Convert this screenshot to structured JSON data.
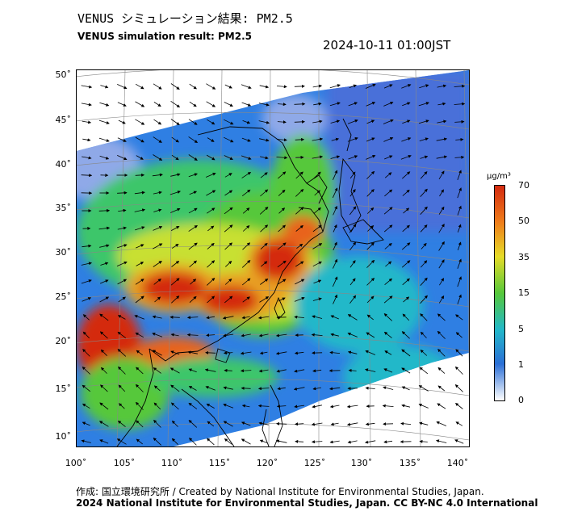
{
  "header": {
    "title_jp": "VENUS シミュレーション結果: PM2.5",
    "title_en": "VENUS simulation result: PM2.5",
    "timestamp": "2024-10-11 01:00JST"
  },
  "map": {
    "lat_ticks": [
      "50˚",
      "45˚",
      "40˚",
      "35˚",
      "30˚",
      "25˚",
      "20˚",
      "15˚",
      "10˚"
    ],
    "lon_ticks": [
      "100˚",
      "105˚",
      "110˚",
      "115˚",
      "120˚",
      "125˚",
      "130˚",
      "135˚",
      "140˚"
    ],
    "lon_range": [
      100,
      141
    ],
    "lat_range": [
      9,
      51
    ]
  },
  "colorbar": {
    "unit": "μg/m³",
    "ticks": [
      "70",
      "50",
      "35",
      "15",
      "5",
      "1",
      "0"
    ],
    "colors": [
      "#d42a10",
      "#ef7d1a",
      "#e6dc28",
      "#56c83a",
      "#22b8c9",
      "#2b6fd6",
      "#ffffff"
    ]
  },
  "footer": {
    "credit": "作成: 国立環境研究所 / Created by National Institute for Environmental Studies, Japan.",
    "copyright": "2024 National Institute for Environmental Studies, Japan. CC BY-NC 4.0 International"
  }
}
